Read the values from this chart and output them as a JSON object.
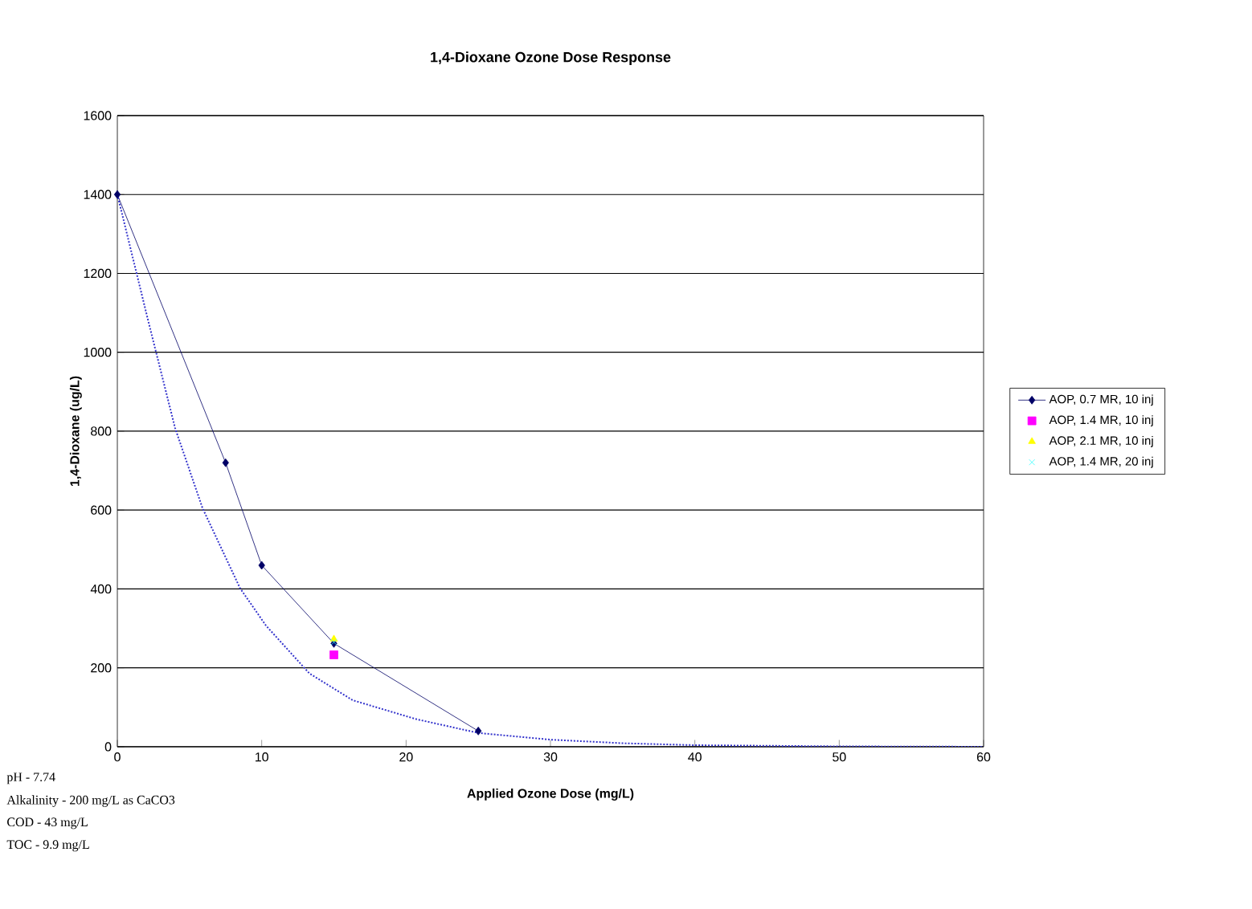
{
  "chart_data": {
    "type": "line",
    "title": "1,4-Dioxane Ozone Dose Response",
    "xlabel": "Applied Ozone Dose (mg/L)",
    "ylabel": "1,4-Dioxane (ug/L)",
    "xlim": [
      0,
      60
    ],
    "xticks": [
      0,
      10,
      20,
      30,
      40,
      50,
      60
    ],
    "ylim": [
      0,
      1600
    ],
    "yticks": [
      0,
      200,
      400,
      600,
      800,
      1000,
      1200,
      1400,
      1600
    ],
    "grid": "y",
    "legend": "right",
    "series": [
      {
        "name": "AOP, 0.7 MR, 10 inj",
        "marker": "diamond",
        "color": "#000066",
        "x": [
          0,
          7.5,
          10,
          15,
          25
        ],
        "values": [
          1400,
          720,
          460,
          262,
          40
        ]
      },
      {
        "name": "AOP, 1.4 MR, 10 inj",
        "type": "scatter",
        "marker": "square",
        "color": "#ff00ff",
        "x": [
          15
        ],
        "values": [
          233
        ]
      },
      {
        "name": "AOP, 2.1 MR, 10 inj",
        "type": "scatter",
        "marker": "triangle",
        "color": "#ffff00",
        "x": [
          15
        ],
        "values": [
          273
        ]
      },
      {
        "name": "AOP, 1.4 MR, 20 inj",
        "type": "scatter",
        "marker": "cross",
        "color": "#33ffff",
        "x": [
          15
        ],
        "values": [
          265
        ]
      },
      {
        "marker": "none",
        "line_style": "dotted",
        "color": "#3333cc",
        "x": [
          0,
          2.15,
          4,
          5.9,
          8.5,
          10.3,
          13.3,
          16.3,
          20.7,
          25,
          30,
          35,
          40,
          50,
          60
        ],
        "values": [
          1400,
          1078,
          808,
          605,
          402,
          307,
          186,
          118,
          70,
          35,
          18,
          9,
          4,
          1,
          0
        ]
      }
    ],
    "annotations": [
      "pH - 7.74",
      "Alkalinity - 200 mg/L as CaCO3",
      "COD - 43 mg/L",
      "TOC - 9.9 mg/L"
    ]
  }
}
